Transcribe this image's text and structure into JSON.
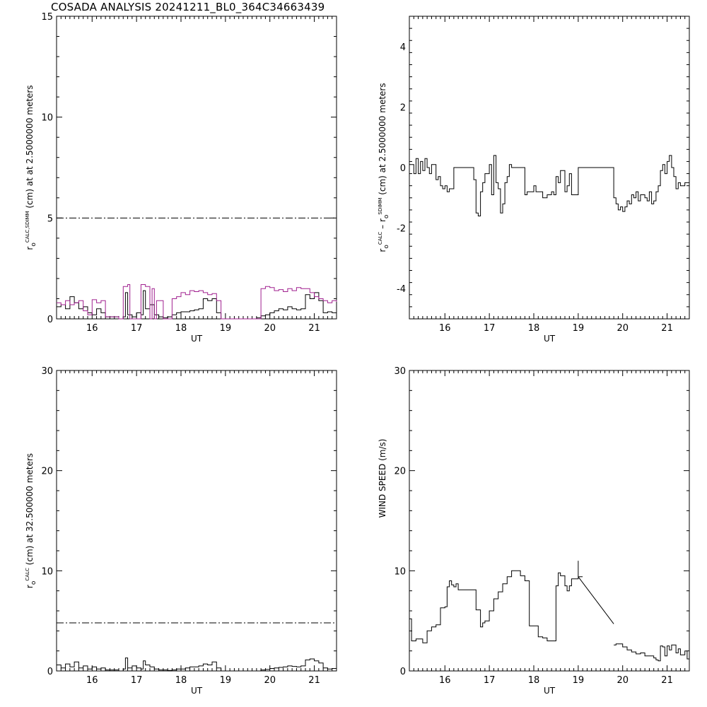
{
  "title": "COSADA ANALYSIS 20241211_BL0_364C34663439",
  "chart_data": [
    {
      "type": "line",
      "xlabel": "UT",
      "ylabel": [
        {
          "text": "r",
          "sub": false
        },
        {
          "text": "o",
          "sub": true
        },
        {
          "text": "CALC,SDIMM",
          "sup": true
        },
        {
          "text": " (cm) at  at 2.5000000 meters",
          "sub": false
        }
      ],
      "xlim": [
        15.2,
        21.5
      ],
      "ylim": [
        0,
        15
      ],
      "xticks": [
        "16",
        "17",
        "18",
        "19",
        "20",
        "21"
      ],
      "yticks": [
        "0",
        "5",
        "10",
        "15"
      ],
      "ytick_values": [
        0,
        5,
        10,
        15
      ],
      "reference_line": 5,
      "series": [
        {
          "color": "#000000",
          "x": [
            15.2,
            15.3,
            15.4,
            15.5,
            15.6,
            15.7,
            15.8,
            15.9,
            16.0,
            16.1,
            16.2,
            16.3,
            16.6,
            16.7,
            16.75,
            16.8,
            16.9,
            17.0,
            17.1,
            17.15,
            17.2,
            17.3,
            17.4,
            17.5,
            17.6,
            17.7,
            17.8,
            17.9,
            18.0,
            18.1,
            18.2,
            18.3,
            18.4,
            18.5,
            18.6,
            18.7,
            18.8,
            18.9,
            19.0,
            19.7,
            19.8,
            19.9,
            20.0,
            20.1,
            20.2,
            20.3,
            20.4,
            20.5,
            20.6,
            20.7,
            20.8,
            20.9,
            21.0,
            21.1,
            21.2,
            21.3,
            21.4,
            21.5
          ],
          "y": [
            0.6,
            0.7,
            0.5,
            1.1,
            0.8,
            0.5,
            0.6,
            0.3,
            0.2,
            0.5,
            0.3,
            0.1,
            0.0,
            0.1,
            1.3,
            0.2,
            0.1,
            0.3,
            0.2,
            1.4,
            0.5,
            0.7,
            0.2,
            0.1,
            0.05,
            0.1,
            0.2,
            0.3,
            0.35,
            0.35,
            0.4,
            0.45,
            0.5,
            1.0,
            0.9,
            1.0,
            0.3,
            0.0,
            0.0,
            0.05,
            0.15,
            0.2,
            0.3,
            0.4,
            0.5,
            0.45,
            0.6,
            0.5,
            0.45,
            0.5,
            1.2,
            1.0,
            1.3,
            0.9,
            0.3,
            0.35,
            0.3,
            0.3
          ]
        },
        {
          "color": "#a0208f",
          "x": [
            15.2,
            15.3,
            15.4,
            15.5,
            15.6,
            15.7,
            15.8,
            15.9,
            16.0,
            16.1,
            16.2,
            16.3,
            16.6,
            16.7,
            16.8,
            16.85,
            16.9,
            17.0,
            17.1,
            17.2,
            17.3,
            17.35,
            17.4,
            17.45,
            17.5,
            17.6,
            17.7,
            17.8,
            17.9,
            18.0,
            18.1,
            18.2,
            18.3,
            18.4,
            18.5,
            18.6,
            18.7,
            18.8,
            18.9,
            19.0,
            19.7,
            19.8,
            19.9,
            20.0,
            20.1,
            20.2,
            20.3,
            20.4,
            20.5,
            20.6,
            20.7,
            20.8,
            20.9,
            21.0,
            21.1,
            21.2,
            21.3,
            21.4,
            21.5
          ],
          "y": [
            0.8,
            0.7,
            0.9,
            0.7,
            0.8,
            0.9,
            0.4,
            0.2,
            0.95,
            0.8,
            0.9,
            0.1,
            0.0,
            1.6,
            1.7,
            0.0,
            0.0,
            0.0,
            1.7,
            1.6,
            0.0,
            1.5,
            0.0,
            0.9,
            0.9,
            0.0,
            0.0,
            1.0,
            1.1,
            1.3,
            1.2,
            1.4,
            1.35,
            1.4,
            1.3,
            1.2,
            1.25,
            0.9,
            0.0,
            0.0,
            0.0,
            1.5,
            1.6,
            1.55,
            1.4,
            1.45,
            1.35,
            1.5,
            1.4,
            1.55,
            1.5,
            1.5,
            1.3,
            1.1,
            1.0,
            0.9,
            0.8,
            0.9,
            0.85
          ]
        }
      ]
    },
    {
      "type": "line",
      "xlabel": "UT",
      "ylabel": [
        {
          "text": "r",
          "sub": false
        },
        {
          "text": "o",
          "sub": true
        },
        {
          "text": "CALC",
          "sup": true
        },
        {
          "text": "  – r",
          "sub": false
        },
        {
          "text": "o",
          "sub": true
        },
        {
          "text": "SDIMM",
          "sup": true
        },
        {
          "text": " (cm) at 2.5000000 meters",
          "sub": false
        }
      ],
      "xlim": [
        15.2,
        21.5
      ],
      "ylim": [
        -5,
        5
      ],
      "xticks": [
        "16",
        "17",
        "18",
        "19",
        "20",
        "21"
      ],
      "yticks": [
        "-4",
        "-2",
        "0",
        "2",
        "4"
      ],
      "ytick_values": [
        -4,
        -2,
        0,
        2,
        4
      ],
      "series": [
        {
          "color": "#000000",
          "x": [
            15.2,
            15.3,
            15.35,
            15.4,
            15.45,
            15.5,
            15.55,
            15.6,
            15.65,
            15.7,
            15.8,
            15.85,
            15.9,
            15.95,
            16.0,
            16.05,
            16.1,
            16.2,
            16.3,
            16.6,
            16.65,
            16.7,
            16.75,
            16.8,
            16.85,
            16.9,
            17.0,
            17.05,
            17.1,
            17.15,
            17.2,
            17.25,
            17.3,
            17.35,
            17.4,
            17.45,
            17.5,
            17.8,
            17.85,
            17.9,
            18.0,
            18.05,
            18.1,
            18.2,
            18.3,
            18.4,
            18.45,
            18.5,
            18.55,
            18.6,
            18.7,
            18.75,
            18.8,
            18.85,
            19.0,
            19.8,
            19.85,
            19.9,
            19.95,
            20.0,
            20.05,
            20.1,
            20.15,
            20.2,
            20.25,
            20.3,
            20.35,
            20.4,
            20.5,
            20.55,
            20.6,
            20.65,
            20.7,
            20.75,
            20.8,
            20.85,
            20.9,
            20.95,
            21.0,
            21.05,
            21.1,
            21.15,
            21.2,
            21.25,
            21.3,
            21.4,
            21.5
          ],
          "y": [
            0.1,
            -0.2,
            0.3,
            -0.2,
            0.2,
            -0.1,
            0.3,
            0.0,
            -0.2,
            0.1,
            -0.4,
            -0.3,
            -0.6,
            -0.7,
            -0.6,
            -0.8,
            -0.7,
            0.0,
            0.0,
            0.0,
            -0.4,
            -1.5,
            -1.6,
            -0.8,
            -0.5,
            -0.2,
            0.1,
            -0.9,
            0.4,
            -0.5,
            -0.7,
            -1.5,
            -1.2,
            -0.5,
            -0.3,
            0.1,
            0.0,
            -0.9,
            -0.8,
            -0.8,
            -0.6,
            -0.8,
            -0.8,
            -1.0,
            -0.9,
            -0.8,
            -0.9,
            -0.3,
            -0.5,
            -0.1,
            -0.8,
            -0.6,
            -0.2,
            -0.9,
            0.0,
            -1.0,
            -1.2,
            -1.4,
            -1.3,
            -1.45,
            -1.3,
            -1.1,
            -1.2,
            -0.9,
            -1.0,
            -0.8,
            -1.1,
            -0.9,
            -1.0,
            -1.1,
            -0.8,
            -1.2,
            -1.1,
            -0.8,
            -0.6,
            -0.1,
            0.1,
            -0.2,
            0.2,
            0.4,
            0.0,
            -0.3,
            -0.7,
            -0.5,
            -0.6,
            -0.5,
            -0.6
          ]
        }
      ]
    },
    {
      "type": "line",
      "xlabel": "UT",
      "ylabel": [
        {
          "text": "r",
          "sub": false
        },
        {
          "text": "o",
          "sub": true
        },
        {
          "text": "CALC",
          "sup": true
        },
        {
          "text": " (cm) at 32.500000 meters",
          "sub": false
        }
      ],
      "xlim": [
        15.2,
        21.5
      ],
      "ylim": [
        0,
        30
      ],
      "xticks": [
        "16",
        "17",
        "18",
        "19",
        "20",
        "21"
      ],
      "yticks": [
        "0",
        "10",
        "20",
        "30"
      ],
      "ytick_values": [
        0,
        10,
        20,
        30
      ],
      "reference_line": 4.8,
      "series": [
        {
          "color": "#000000",
          "x": [
            15.2,
            15.3,
            15.4,
            15.5,
            15.6,
            15.7,
            15.8,
            15.9,
            16.0,
            16.1,
            16.2,
            16.3,
            16.6,
            16.7,
            16.75,
            16.8,
            16.9,
            17.0,
            17.1,
            17.15,
            17.2,
            17.3,
            17.4,
            17.5,
            17.6,
            17.7,
            17.8,
            17.9,
            18.0,
            18.1,
            18.2,
            18.3,
            18.4,
            18.5,
            18.6,
            18.7,
            18.8,
            18.9,
            19.0,
            19.7,
            19.8,
            19.9,
            20.0,
            20.1,
            20.2,
            20.3,
            20.4,
            20.5,
            20.6,
            20.7,
            20.8,
            20.9,
            21.0,
            21.1,
            21.2,
            21.3,
            21.4,
            21.5
          ],
          "y": [
            0.6,
            0.3,
            0.7,
            0.4,
            0.9,
            0.3,
            0.5,
            0.2,
            0.4,
            0.2,
            0.3,
            0.1,
            0.0,
            0.2,
            1.3,
            0.3,
            0.5,
            0.3,
            0.2,
            1.0,
            0.6,
            0.4,
            0.2,
            0.1,
            0.1,
            0.05,
            0.1,
            0.2,
            0.2,
            0.3,
            0.4,
            0.4,
            0.5,
            0.7,
            0.6,
            0.9,
            0.3,
            0.0,
            0.0,
            0.0,
            0.1,
            0.15,
            0.25,
            0.3,
            0.35,
            0.4,
            0.5,
            0.45,
            0.4,
            0.5,
            1.1,
            1.2,
            1.0,
            0.8,
            0.3,
            0.2,
            0.25,
            0.2
          ]
        }
      ]
    },
    {
      "type": "line",
      "xlabel": "UT",
      "ylabel": [
        {
          "text": "WIND SPEED (m/s)",
          "sub": false
        }
      ],
      "xlim": [
        15.2,
        21.5
      ],
      "ylim": [
        0,
        30
      ],
      "xticks": [
        "16",
        "17",
        "18",
        "19",
        "20",
        "21"
      ],
      "yticks": [
        "0",
        "10",
        "20",
        "30"
      ],
      "ytick_values": [
        0,
        10,
        20,
        30
      ],
      "series": [
        {
          "color": "#000000",
          "steps": true,
          "x": [
            15.2,
            15.25,
            15.35,
            15.5,
            15.6,
            15.7,
            15.8,
            15.9,
            16.0,
            16.05,
            16.1,
            16.15,
            16.2,
            16.25,
            16.3,
            16.7,
            16.8,
            16.85,
            16.9,
            17.0,
            17.1,
            17.2,
            17.3,
            17.4,
            17.5,
            17.6,
            17.7,
            17.8,
            17.9,
            17.95,
            18.0,
            18.1,
            18.2,
            18.3,
            18.4,
            18.5,
            18.55,
            18.6,
            18.7,
            18.75,
            18.8,
            18.85,
            18.9,
            19.0,
            19.05
          ],
          "y": [
            5.2,
            3.0,
            3.2,
            2.8,
            4.0,
            4.4,
            4.6,
            6.3,
            6.4,
            8.4,
            9.0,
            8.6,
            8.4,
            8.7,
            8.1,
            6.1,
            4.4,
            4.8,
            5.0,
            6.0,
            7.2,
            7.9,
            8.7,
            9.4,
            10.0,
            10.0,
            9.5,
            9.0,
            4.5,
            4.5,
            4.5,
            3.4,
            3.3,
            3.0,
            3.0,
            8.5,
            9.8,
            9.5,
            8.5,
            8.0,
            8.5,
            9.2,
            9.2,
            9.4,
            9.4
          ]
        },
        {
          "color": "#000000",
          "steps": false,
          "x": [
            19.0,
            19.8
          ],
          "y": [
            9.4,
            4.7
          ]
        },
        {
          "color": "#000000",
          "steps": true,
          "x": [
            19.8,
            19.85,
            20.0,
            20.1,
            20.2,
            20.3,
            20.4,
            20.5,
            20.6,
            20.7,
            20.75,
            20.8,
            20.85,
            20.9,
            20.95,
            21.0,
            21.05,
            21.1,
            21.2,
            21.25,
            21.3,
            21.4,
            21.45,
            21.5
          ],
          "y": [
            2.6,
            2.7,
            2.4,
            2.1,
            1.9,
            1.7,
            1.8,
            1.5,
            1.5,
            1.3,
            1.1,
            1.0,
            2.5,
            2.4,
            1.5,
            2.5,
            2.1,
            2.6,
            1.8,
            2.2,
            1.6,
            2.0,
            1.2,
            1.4
          ]
        }
      ],
      "spike": {
        "x": 19.0,
        "y0": 9.4,
        "y1": 11.0
      }
    }
  ]
}
